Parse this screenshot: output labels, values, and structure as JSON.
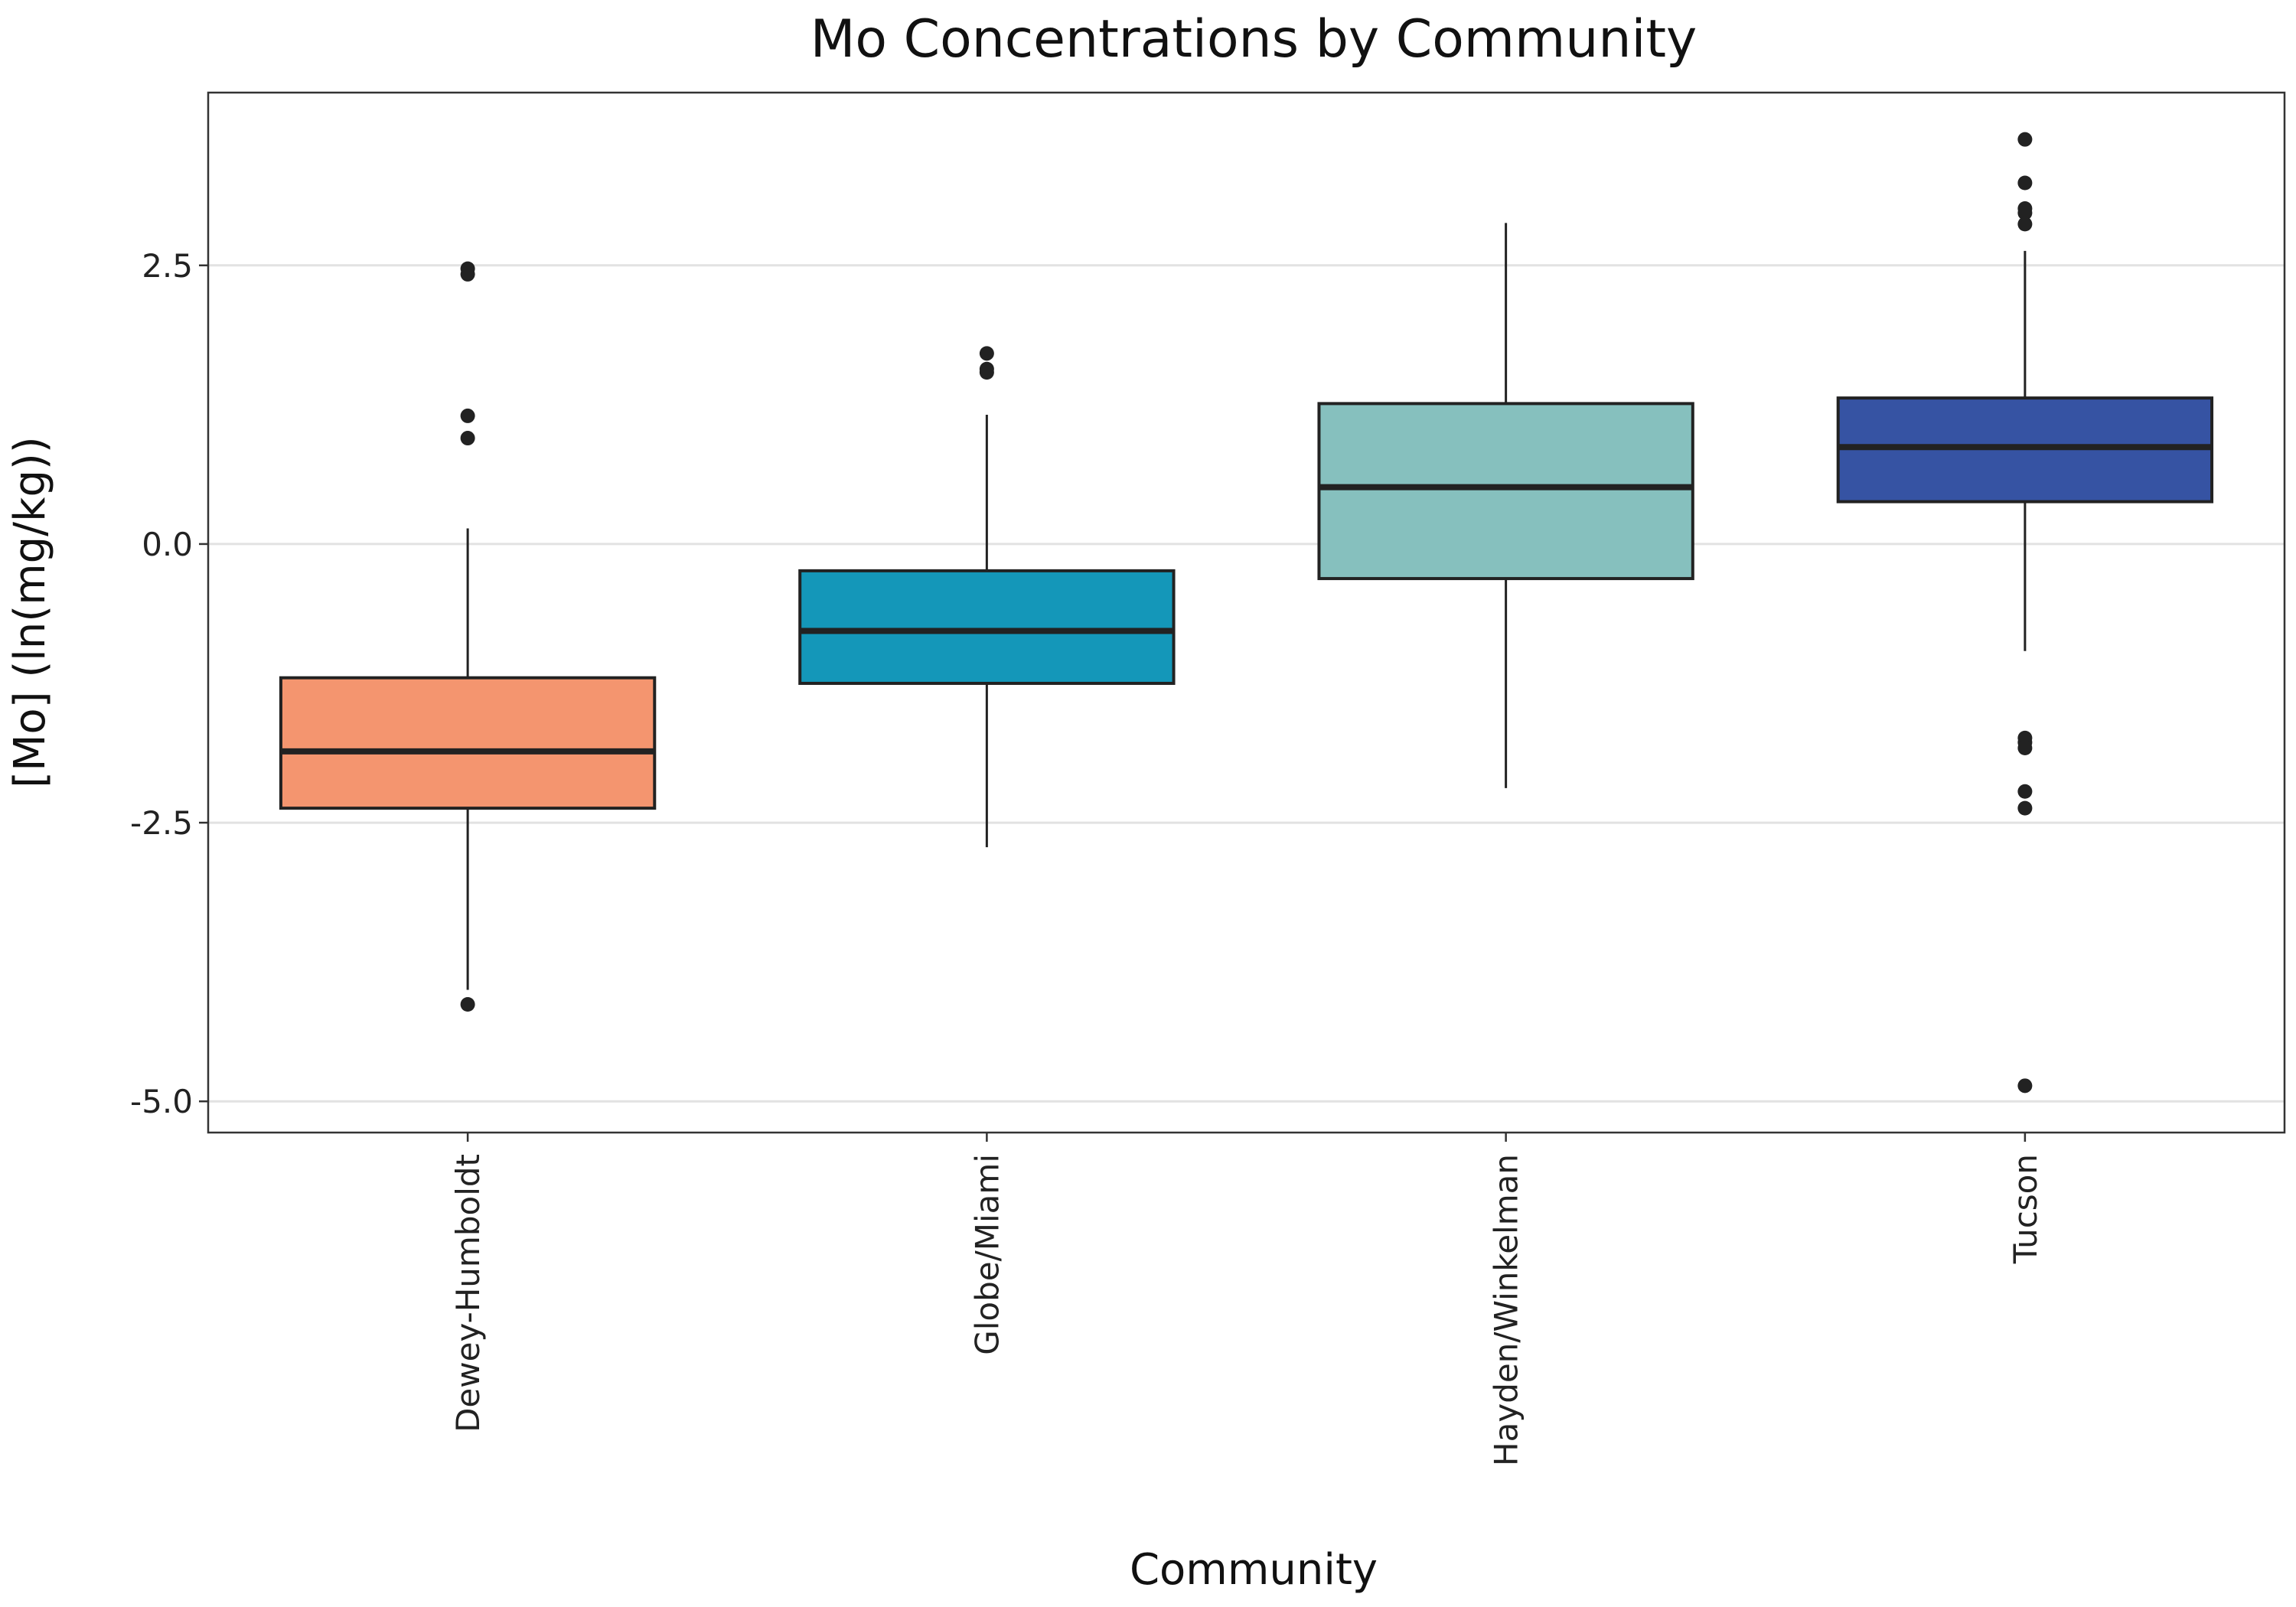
{
  "chart_data": {
    "type": "box",
    "title": "Mo Concentrations by Community",
    "xlabel": "Community",
    "ylabel": "[Mo] (ln(mg/kg))",
    "ylim": [
      -5.28,
      4.05
    ],
    "yticks": [
      2.5,
      0.0,
      -2.5,
      -5.0
    ],
    "ytick_labels": [
      "2.5",
      "0.0",
      "-2.5",
      "-5.0"
    ],
    "grid": "horizontal major",
    "legend": "none",
    "categories": [
      "Dewey-Humboldt",
      "Globe/Miami",
      "Hayden/Winkelman",
      "Tucson"
    ],
    "boxes": [
      {
        "category": "Dewey-Humboldt",
        "color": "#F4956F",
        "whisker_low": -4.0,
        "q1": -2.37,
        "median": -1.86,
        "q3": -1.2,
        "whisker_high": 0.14,
        "outliers": [
          2.47,
          2.42,
          1.15,
          0.95,
          -4.13
        ]
      },
      {
        "category": "Globe/Miami",
        "color": "#1497B9",
        "whisker_low": -2.72,
        "q1": -1.25,
        "median": -0.78,
        "q3": -0.24,
        "whisker_high": 1.16,
        "outliers": [
          1.71,
          1.57,
          1.54
        ]
      },
      {
        "category": "Hayden/Winkelman",
        "color": "#86C0BE",
        "whisker_low": -2.19,
        "q1": -0.31,
        "median": 0.51,
        "q3": 1.26,
        "whisker_high": 2.88,
        "outliers": []
      },
      {
        "category": "Tucson",
        "color": "#3653A3",
        "whisker_low": -0.96,
        "q1": 0.38,
        "median": 0.87,
        "q3": 1.31,
        "whisker_high": 2.63,
        "outliers": [
          3.63,
          3.24,
          3.01,
          2.97,
          2.87,
          -1.74,
          -1.78,
          -1.83,
          -2.22,
          -2.37,
          -4.86
        ]
      }
    ]
  }
}
